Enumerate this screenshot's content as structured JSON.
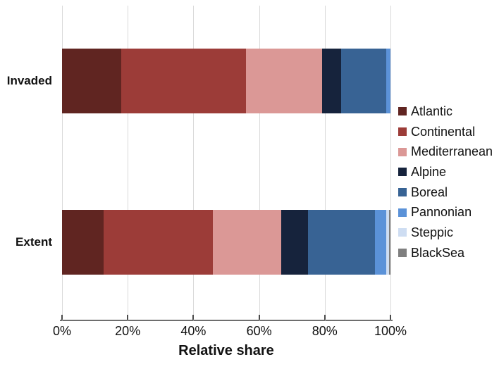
{
  "chart_data": {
    "type": "bar",
    "orientation": "horizontal",
    "stacked": true,
    "title": "",
    "xlabel": "Relative share",
    "ylabel": "",
    "categories": [
      "Invaded",
      "Extent"
    ],
    "series": [
      {
        "name": "Atlantic",
        "color": "#602521",
        "values": [
          18.1,
          12.6
        ]
      },
      {
        "name": "Continental",
        "color": "#9c3c38",
        "values": [
          38.0,
          33.4
        ]
      },
      {
        "name": "Mediterranean",
        "color": "#db9896",
        "values": [
          23.0,
          20.7
        ]
      },
      {
        "name": "Alpine",
        "color": "#16233c",
        "values": [
          5.9,
          8.2
        ]
      },
      {
        "name": "Boreal",
        "color": "#386394",
        "values": [
          13.8,
          20.4
        ]
      },
      {
        "name": "Pannonian",
        "color": "#5b92d8",
        "values": [
          1.2,
          3.4
        ]
      },
      {
        "name": "Steppic",
        "color": "#ceddf2",
        "values": [
          0.0,
          0.8
        ]
      },
      {
        "name": "BlackSea",
        "color": "#7f7f7f",
        "values": [
          0.0,
          0.5
        ]
      }
    ],
    "x_ticks": [
      "0%",
      "20%",
      "40%",
      "60%",
      "80%",
      "100%"
    ],
    "xlim": [
      0,
      100
    ],
    "grid": "vertical",
    "gridline_color": "#d9d9d9",
    "axis_line_color": "#6e6e6e",
    "legend_position": "right"
  }
}
